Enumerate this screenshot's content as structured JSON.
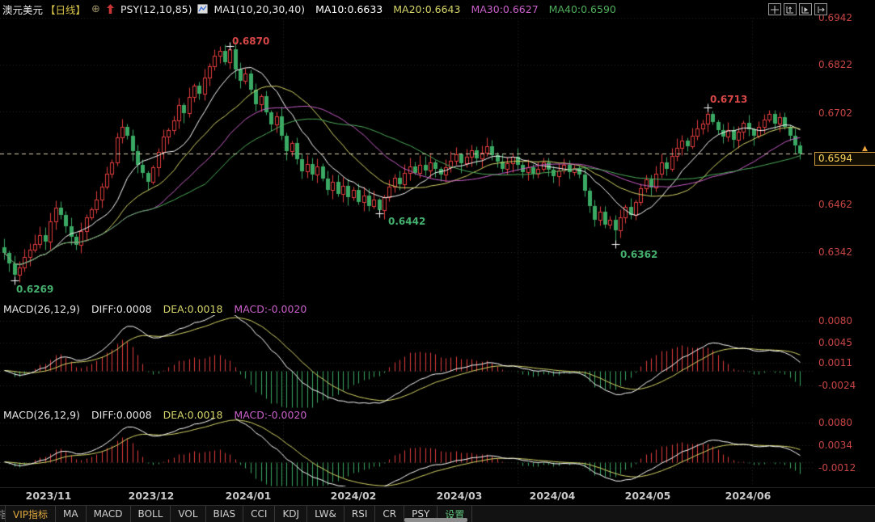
{
  "header": {
    "title": "澳元美元",
    "period": "【日线】",
    "psy": "PSY(12,10,85)",
    "ma_group": "MA1(10,20,30,40)",
    "ma_lines": [
      {
        "label": "MA10:0.6633",
        "color": "#ffffff"
      },
      {
        "label": "MA20:0.6643",
        "color": "#d6d66a"
      },
      {
        "label": "MA30:0.6627",
        "color": "#c95fc9"
      },
      {
        "label": "MA40:0.6590",
        "color": "#4fae5c"
      }
    ]
  },
  "icons": {
    "circle_plus": "⊕",
    "price_up_arrow": "▲"
  },
  "axis": {
    "main": [
      "0.6942",
      "0.6822",
      "0.6702",
      "0.6462",
      "0.6342"
    ]
  },
  "price_tag": {
    "value": "0.6594",
    "border": "#cf9b3c",
    "text": "#ffd75e",
    "arrow": "#e8a33d"
  },
  "macd1": {
    "name": "MACD(26,12,9)",
    "diff": "DIFF:0.0008",
    "dea": "DEA:0.0018",
    "macd": "MACD:-0.0020",
    "axis": [
      "0.0080",
      "0.0045",
      "0.0011",
      "-0.0024"
    ]
  },
  "macd2": {
    "name": "MACD(26,12,9)",
    "diff": "DIFF:0.0008",
    "dea": "DEA:0.0018",
    "macd": "MACD:-0.0020",
    "axis": [
      "0.0080",
      "0.0034",
      "-0.0012"
    ]
  },
  "x_months": [
    "2023/11",
    "2023/12",
    "2024/01",
    "2024/02",
    "2024/03",
    "2024/04",
    "2024/05",
    "2024/06"
  ],
  "toolbar": {
    "clipped_fragment": "指",
    "tabs": [
      {
        "label": "VIP指标",
        "color": "#e2aa3f"
      },
      {
        "label": "MA",
        "color": "#cfcfcf"
      },
      {
        "label": "MACD",
        "color": "#cfcfcf"
      },
      {
        "label": "BOLL",
        "color": "#cfcfcf"
      },
      {
        "label": "VOL",
        "color": "#cfcfcf"
      },
      {
        "label": "BIAS",
        "color": "#cfcfcf"
      },
      {
        "label": "CCI",
        "color": "#cfcfcf"
      },
      {
        "label": "KDJ",
        "color": "#cfcfcf"
      },
      {
        "label": "LW&",
        "color": "#cfcfcf"
      },
      {
        "label": "RSI",
        "color": "#cfcfcf"
      },
      {
        "label": "CR",
        "color": "#cfcfcf"
      },
      {
        "label": "PSY",
        "color": "#cfcfcf"
      },
      {
        "label": "设置",
        "color": "#5fc47e"
      }
    ]
  },
  "chart_data": {
    "type": "candlestick",
    "title": "澳元美元 日线 (AUD/USD daily) with MA(10,20,30,40) overlays and two MACD(26,12,9) panes",
    "x_axis": [
      "2023/11",
      "2023/12",
      "2024/01",
      "2024/02",
      "2024/03",
      "2024/04",
      "2024/05",
      "2024/06"
    ],
    "y_axis_ticks": [
      0.6942,
      0.6822,
      0.6702,
      0.6462,
      0.6342
    ],
    "last_price": 0.6594,
    "ma_periods": [
      10,
      20,
      30,
      40
    ],
    "ma_readout": {
      "ma10": 0.6633,
      "ma20": 0.6643,
      "ma30": 0.6627,
      "ma40": 0.659
    },
    "macd_params": [
      26,
      12,
      9
    ],
    "macd_readout": {
      "diff": 0.0008,
      "dea": 0.0018,
      "macd": -0.002
    },
    "macd1_axis": [
      0.008,
      0.0045,
      0.0011,
      -0.0024
    ],
    "macd2_axis": [
      0.008,
      0.0034,
      -0.0012
    ],
    "closes": [
      0.634,
      0.6312,
      0.6285,
      0.6302,
      0.633,
      0.6348,
      0.6362,
      0.6385,
      0.6368,
      0.642,
      0.6455,
      0.6438,
      0.6408,
      0.6382,
      0.636,
      0.6396,
      0.643,
      0.6452,
      0.6476,
      0.651,
      0.6542,
      0.6572,
      0.6635,
      0.6662,
      0.664,
      0.66,
      0.6566,
      0.6545,
      0.6522,
      0.656,
      0.6598,
      0.6638,
      0.6655,
      0.668,
      0.6718,
      0.6698,
      0.674,
      0.6768,
      0.6748,
      0.6788,
      0.6818,
      0.6845,
      0.6858,
      0.6828,
      0.6862,
      0.681,
      0.678,
      0.68,
      0.6758,
      0.672,
      0.6742,
      0.67,
      0.6668,
      0.669,
      0.664,
      0.66,
      0.6622,
      0.658,
      0.6548,
      0.6568,
      0.654,
      0.6562,
      0.653,
      0.6502,
      0.6522,
      0.649,
      0.6512,
      0.6482,
      0.6502,
      0.647,
      0.6486,
      0.646,
      0.6476,
      0.645,
      0.6482,
      0.651,
      0.6532,
      0.6515,
      0.6545,
      0.6562,
      0.6545,
      0.6566,
      0.655,
      0.6572,
      0.6556,
      0.654,
      0.656,
      0.6576,
      0.6592,
      0.657,
      0.6586,
      0.6602,
      0.6582,
      0.6596,
      0.6612,
      0.659,
      0.6574,
      0.6556,
      0.657,
      0.6586,
      0.6566,
      0.6546,
      0.656,
      0.6542,
      0.6556,
      0.6572,
      0.6552,
      0.6536,
      0.655,
      0.6566,
      0.6546,
      0.6558,
      0.654,
      0.65,
      0.646,
      0.6425,
      0.6445,
      0.6412,
      0.6425,
      0.6398,
      0.643,
      0.6458,
      0.6438,
      0.647,
      0.6505,
      0.6528,
      0.6508,
      0.6542,
      0.6572,
      0.6556,
      0.6588,
      0.6608,
      0.6628,
      0.6612,
      0.664,
      0.6658,
      0.667,
      0.6695,
      0.6675,
      0.6655,
      0.6638,
      0.6654,
      0.663,
      0.665,
      0.6672,
      0.6656,
      0.664,
      0.6662,
      0.6682,
      0.6695,
      0.667,
      0.6688,
      0.6662,
      0.664,
      0.6615,
      0.6594
    ],
    "key_points": [
      {
        "index": 2,
        "type": "low",
        "price": 0.6269,
        "label": "0.6269"
      },
      {
        "index": 44,
        "type": "high",
        "price": 0.687,
        "label": "0.6870"
      },
      {
        "index": 73,
        "type": "low",
        "price": 0.6442,
        "label": "0.6442"
      },
      {
        "index": 119,
        "type": "low",
        "price": 0.6362,
        "label": "0.6362"
      },
      {
        "index": 137,
        "type": "high",
        "price": 0.6713,
        "label": "0.6713"
      }
    ],
    "colors": {
      "up": "#e23d3d",
      "down": "#3aa963",
      "ma": [
        "#ffffff",
        "#d6d66a",
        "#c95fc9",
        "#4fae5c"
      ],
      "diff_line": "#ffffff",
      "dea_line": "#d6d66a",
      "grid": "#262626",
      "price_line": "#d8d2b0",
      "axis_text": "#c74545",
      "ann_high": "#d94747",
      "ann_low": "#45b06e"
    }
  }
}
